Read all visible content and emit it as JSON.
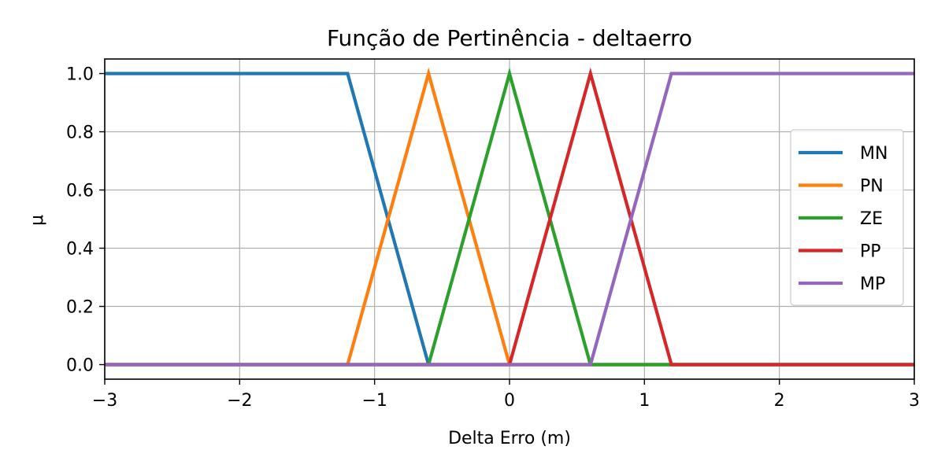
{
  "chart_data": {
    "type": "line",
    "title": "Função de Pertinência - deltaerro",
    "xlabel": "Delta Erro (m)",
    "ylabel": "μ",
    "xlim": [
      -3,
      3
    ],
    "ylim": [
      -0.05,
      1.05
    ],
    "xticks": [
      -3,
      -2,
      -1,
      0,
      1,
      2,
      3
    ],
    "xtick_labels": [
      "−3",
      "−2",
      "−1",
      "0",
      "1",
      "2",
      "3"
    ],
    "yticks": [
      0.0,
      0.2,
      0.4,
      0.6,
      0.8,
      1.0
    ],
    "ytick_labels": [
      "0.0",
      "0.2",
      "0.4",
      "0.6",
      "0.8",
      "1.0"
    ],
    "grid": true,
    "legend_position": "center-right",
    "series": [
      {
        "name": "MN",
        "color": "#1f77b4",
        "x": [
          -3,
          -1.2,
          -0.6,
          3
        ],
        "y": [
          1,
          1,
          0,
          0
        ]
      },
      {
        "name": "PN",
        "color": "#ff7f0e",
        "x": [
          -3,
          -1.2,
          -0.6,
          0,
          3
        ],
        "y": [
          0,
          0,
          1,
          0,
          0
        ]
      },
      {
        "name": "ZE",
        "color": "#2ca02c",
        "x": [
          -3,
          -0.6,
          0,
          0.6,
          3
        ],
        "y": [
          0,
          0,
          1,
          0,
          0
        ]
      },
      {
        "name": "PP",
        "color": "#d62728",
        "x": [
          -3,
          0,
          0.6,
          1.2,
          3
        ],
        "y": [
          0,
          0,
          1,
          0,
          0
        ]
      },
      {
        "name": "MP",
        "color": "#9467bd",
        "x": [
          -3,
          0.6,
          1.2,
          3
        ],
        "y": [
          0,
          0,
          1,
          1
        ]
      }
    ]
  }
}
